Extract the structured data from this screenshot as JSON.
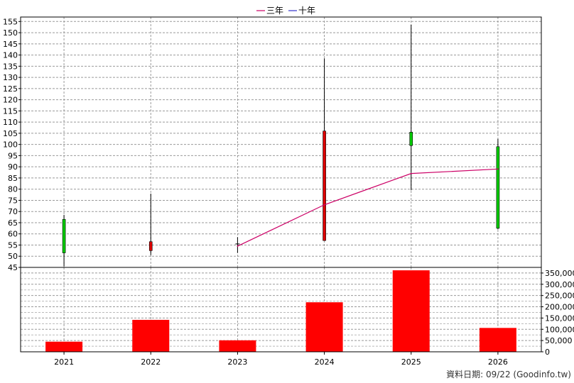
{
  "chart_data": [
    {
      "type": "candlestick",
      "legend": {
        "position": "top-center",
        "entries": [
          {
            "label": "三年",
            "color": "#cc0066"
          },
          {
            "label": "十年",
            "color": "#3333cc"
          }
        ]
      },
      "categories": [
        "2021",
        "2022",
        "2023",
        "2024",
        "2025",
        "2026"
      ],
      "y_ticks": [
        45,
        50,
        55,
        60,
        65,
        70,
        75,
        80,
        85,
        90,
        95,
        100,
        105,
        110,
        115,
        120,
        125,
        130,
        135,
        140,
        145,
        150,
        155
      ],
      "ylim": [
        45,
        157
      ],
      "grid": true,
      "candles": [
        {
          "x": "2021",
          "open": 51.5,
          "close": 66.5,
          "high": 68.5,
          "low": 45.5,
          "color": "#00cc00"
        },
        {
          "x": "2022",
          "open": 56.5,
          "close": 52.5,
          "high": 78.0,
          "low": 50.5,
          "color": "#dd0000"
        },
        {
          "x": "2023",
          "open": 55.5,
          "close": 55.5,
          "high": 58.5,
          "low": 51.5,
          "color": "#000000"
        },
        {
          "x": "2024",
          "open": 106.0,
          "close": 57.0,
          "high": 138.5,
          "low": 57.0,
          "color": "#dd0000"
        },
        {
          "x": "2025",
          "open": 99.5,
          "close": 105.5,
          "high": 153.5,
          "low": 79.5,
          "color": "#00cc00"
        },
        {
          "x": "2026",
          "open": 62.5,
          "close": 99.0,
          "high": 102.5,
          "low": 62.0,
          "color": "#00cc00"
        }
      ],
      "series": [
        {
          "name": "三年",
          "x": [
            "2023",
            "2024",
            "2025",
            "2026"
          ],
          "values": [
            54.5,
            73.0,
            87.0,
            89.0
          ],
          "color": "#cc0066"
        }
      ]
    },
    {
      "type": "bar",
      "categories": [
        "2021",
        "2022",
        "2023",
        "2024",
        "2025",
        "2026"
      ],
      "values": [
        45000,
        142000,
        51000,
        220000,
        362000,
        106000
      ],
      "color": "#ff0000",
      "y_ticks": [
        0,
        50000,
        100000,
        150000,
        200000,
        250000,
        300000,
        350000
      ],
      "y_tick_labels": [
        "0",
        "50,000",
        "100,000",
        "150,000",
        "200,000",
        "250,000",
        "300,000",
        "350,000"
      ],
      "ylim": [
        0,
        375000
      ],
      "grid": true
    }
  ],
  "credit": "資料日期: 09/22  (Goodinfo.tw)"
}
